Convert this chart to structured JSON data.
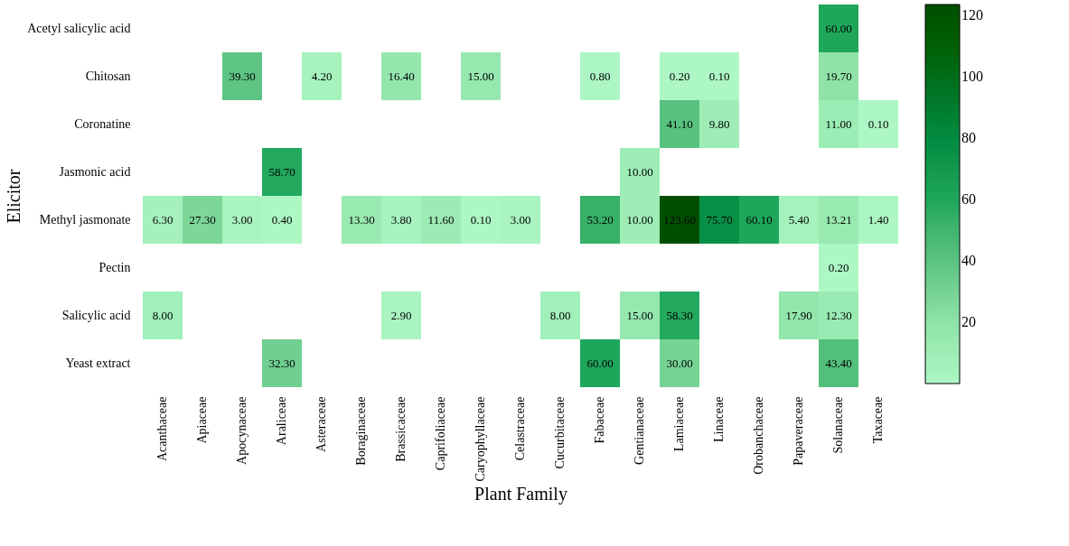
{
  "chart_data": {
    "type": "heatmap",
    "xlabel": "Plant Family",
    "ylabel": "Elicitor",
    "categories": [
      "Acanthaceae",
      "Apiaceae",
      "Apocynaceae",
      "Araliceae",
      "Asteraceae",
      "Boraginaceae",
      "Brassicaceae",
      "Caprifoliaceae",
      "Caryophyllaceae",
      "Celastraceae",
      "Cucurbitaceae",
      "Fabaceae",
      "Gentianaceae",
      "Lamiaceae",
      "Linaceae",
      "Orobanchaceae",
      "Papaveraceae",
      "Solanaceae",
      "Taxaceae"
    ],
    "y_categories": [
      "Acetyl salicylic acid",
      "Chitosan",
      "Coronatine",
      "Jasmonic acid",
      "Methyl jasmonate",
      "Pectin",
      "Salicylic acid",
      "Yeast extract"
    ],
    "cells": [
      [
        null,
        null,
        null,
        null,
        null,
        null,
        null,
        null,
        null,
        null,
        null,
        null,
        null,
        null,
        null,
        null,
        null,
        60.0,
        null
      ],
      [
        null,
        null,
        39.3,
        null,
        4.2,
        null,
        16.4,
        null,
        15.0,
        null,
        null,
        0.8,
        null,
        0.2,
        0.1,
        null,
        null,
        19.7,
        null
      ],
      [
        null,
        null,
        null,
        null,
        null,
        null,
        null,
        null,
        null,
        null,
        null,
        null,
        null,
        41.1,
        9.8,
        null,
        null,
        11.0,
        0.1
      ],
      [
        null,
        null,
        null,
        58.7,
        null,
        null,
        null,
        null,
        null,
        null,
        null,
        null,
        10.0,
        null,
        null,
        null,
        null,
        null,
        null
      ],
      [
        6.3,
        27.3,
        3.0,
        0.4,
        null,
        13.3,
        3.8,
        11.6,
        0.1,
        3.0,
        null,
        53.2,
        10.0,
        123.6,
        75.7,
        60.1,
        5.4,
        13.21,
        1.4
      ],
      [
        null,
        null,
        null,
        null,
        null,
        null,
        null,
        null,
        null,
        null,
        null,
        null,
        null,
        null,
        null,
        null,
        null,
        0.2,
        null
      ],
      [
        8.0,
        null,
        null,
        null,
        null,
        null,
        2.9,
        null,
        null,
        null,
        8.0,
        null,
        15.0,
        58.3,
        null,
        null,
        17.9,
        12.3,
        null
      ],
      [
        null,
        null,
        null,
        32.3,
        null,
        null,
        null,
        null,
        null,
        null,
        null,
        60.0,
        null,
        30.0,
        null,
        null,
        null,
        43.4,
        null
      ]
    ],
    "cell_labels": [
      [
        null,
        null,
        null,
        null,
        null,
        null,
        null,
        null,
        null,
        null,
        null,
        null,
        null,
        null,
        null,
        null,
        null,
        "60.00",
        null
      ],
      [
        null,
        null,
        "39.30",
        null,
        "4.20",
        null,
        "16.40",
        null,
        "15.00",
        null,
        null,
        "0.80",
        null,
        "0.20",
        "0.10",
        null,
        null,
        "19.70",
        null
      ],
      [
        null,
        null,
        null,
        null,
        null,
        null,
        null,
        null,
        null,
        null,
        null,
        null,
        null,
        "41.10",
        "9.80",
        null,
        null,
        "11.00",
        "0.10"
      ],
      [
        null,
        null,
        null,
        "58.70",
        null,
        null,
        null,
        null,
        null,
        null,
        null,
        null,
        "10.00",
        null,
        null,
        null,
        null,
        null,
        null
      ],
      [
        "6.30",
        "27.30",
        "3.00",
        "0.40",
        null,
        "13.30",
        "3.80",
        "11.60",
        "0.10",
        "3.00",
        null,
        "53.20",
        "10.00",
        "123.60",
        "75.70",
        "60.10",
        "5.40",
        "13.21",
        "1.40"
      ],
      [
        null,
        null,
        null,
        null,
        null,
        null,
        null,
        null,
        null,
        null,
        null,
        null,
        null,
        null,
        null,
        null,
        null,
        "0.20",
        null
      ],
      [
        "8.00",
        null,
        null,
        null,
        null,
        null,
        "2.90",
        null,
        null,
        null,
        "8.00",
        null,
        "15.00",
        "58.30",
        null,
        null,
        "17.90",
        "12.30",
        null
      ],
      [
        null,
        null,
        null,
        "32.30",
        null,
        null,
        null,
        null,
        null,
        null,
        null,
        "60.00",
        null,
        "30.00",
        null,
        null,
        null,
        "43.40",
        null
      ]
    ],
    "clim": [
      0.1,
      123.6
    ],
    "cticks": [
      20,
      40,
      60,
      80,
      100,
      120
    ],
    "grid": false
  }
}
